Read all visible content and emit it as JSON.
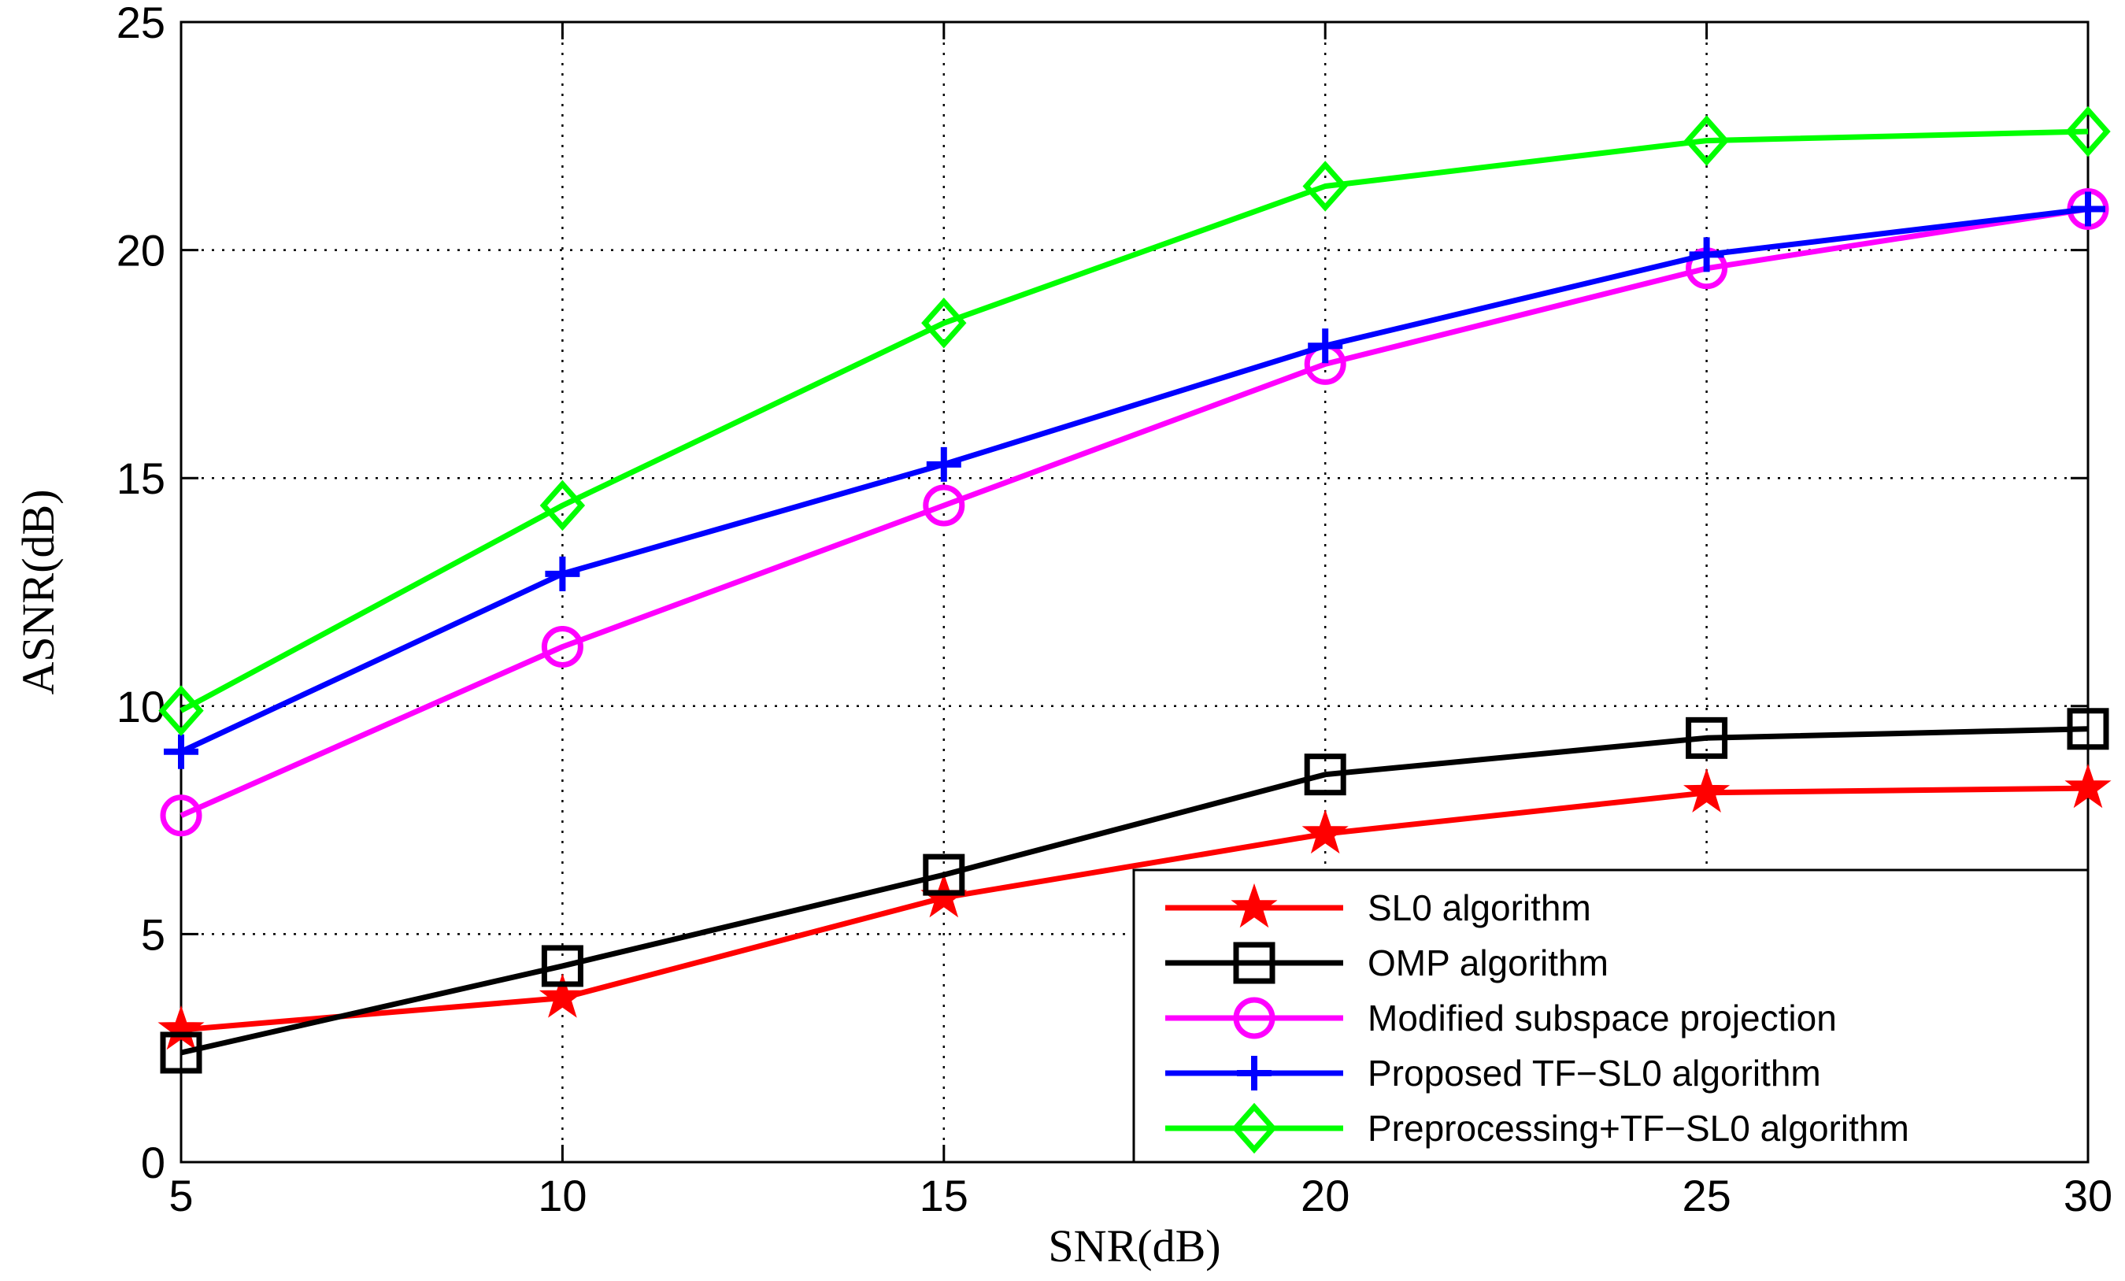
{
  "chart_data": {
    "type": "line",
    "xlabel": "SNR(dB)",
    "ylabel": "ASNR(dB)",
    "xlim": [
      5,
      30
    ],
    "ylim": [
      0,
      25
    ],
    "xticks": [
      5,
      10,
      15,
      20,
      25,
      30
    ],
    "yticks": [
      0,
      5,
      10,
      15,
      20,
      25
    ],
    "grid": true,
    "legend_position": "bottom-right",
    "x": [
      5,
      10,
      15,
      20,
      25,
      30
    ],
    "series": [
      {
        "name": "SL0 algorithm",
        "color": "#ff0000",
        "marker": "star",
        "values": [
          2.9,
          3.6,
          5.8,
          7.2,
          8.1,
          8.2
        ]
      },
      {
        "name": "OMP algorithm",
        "color": "#000000",
        "marker": "square",
        "values": [
          2.4,
          4.3,
          6.3,
          8.5,
          9.3,
          9.5
        ]
      },
      {
        "name": "Modified subspace projection",
        "color": "#ff00ff",
        "marker": "circle",
        "values": [
          7.6,
          11.3,
          14.4,
          17.5,
          19.6,
          20.9
        ]
      },
      {
        "name": "Proposed TF−SL0 algorithm",
        "color": "#0000ff",
        "marker": "plus",
        "values": [
          9.0,
          12.9,
          15.3,
          17.9,
          19.9,
          20.9
        ]
      },
      {
        "name": "Preprocessing+TF−SL0 algorithm",
        "color": "#00ff00",
        "marker": "diamond",
        "values": [
          9.9,
          14.4,
          18.4,
          21.4,
          22.4,
          22.6
        ]
      }
    ]
  }
}
